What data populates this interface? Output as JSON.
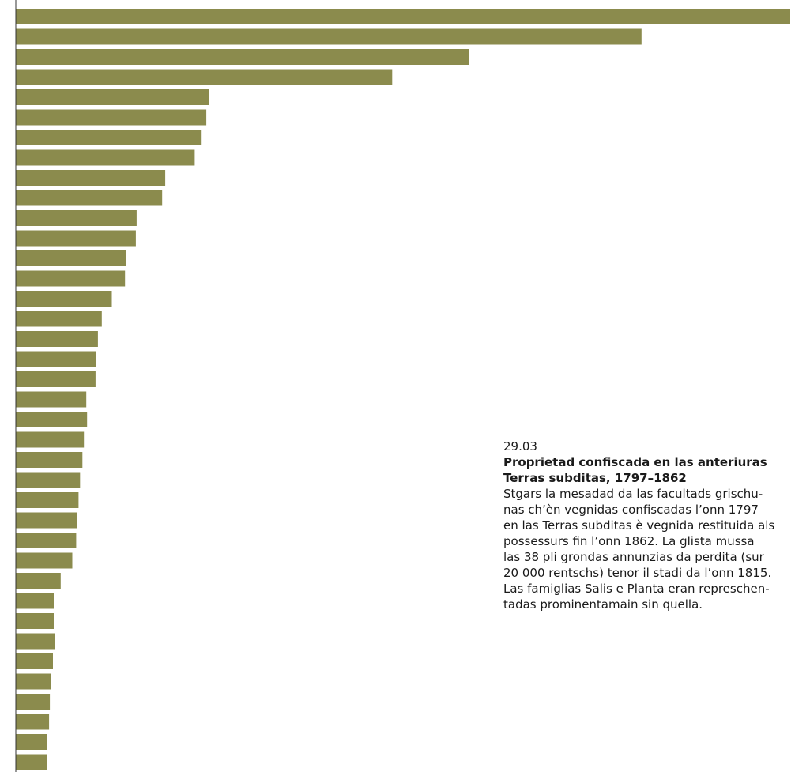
{
  "chart_data": {
    "type": "bar",
    "orientation": "horizontal",
    "values": [
      1000,
      808,
      585,
      486,
      250,
      246,
      239,
      231,
      193,
      189,
      156,
      155,
      142,
      141,
      124,
      111,
      106,
      104,
      103,
      91,
      92,
      88,
      86,
      83,
      81,
      79,
      78,
      73,
      58,
      49,
      49,
      50,
      48,
      45,
      44,
      43,
      40,
      40
    ],
    "bar_color": "#8b8b4d",
    "axis_color": "#333333"
  },
  "caption": {
    "number": "29.03",
    "title_lines": [
      "Proprietad confiscada en las anteriuras",
      "Terras subditas, 1797–1862"
    ],
    "text_lines": [
      "Stgars la mesadad da las facultads grischu-",
      "nas ch’èn vegnidas confiscadas l’onn 1797",
      "en las Terras subditas è vegnida restituida als",
      "possessurs fin l’onn 1862. La glista mussa",
      "las 38 pli grondas annunzias da perdita (sur",
      "20 000 rentschs) tenor il stadi da l’onn 1815.",
      "Las famiglias Salis e Planta eran represchen-",
      "tadas prominentamain sin quella."
    ]
  }
}
